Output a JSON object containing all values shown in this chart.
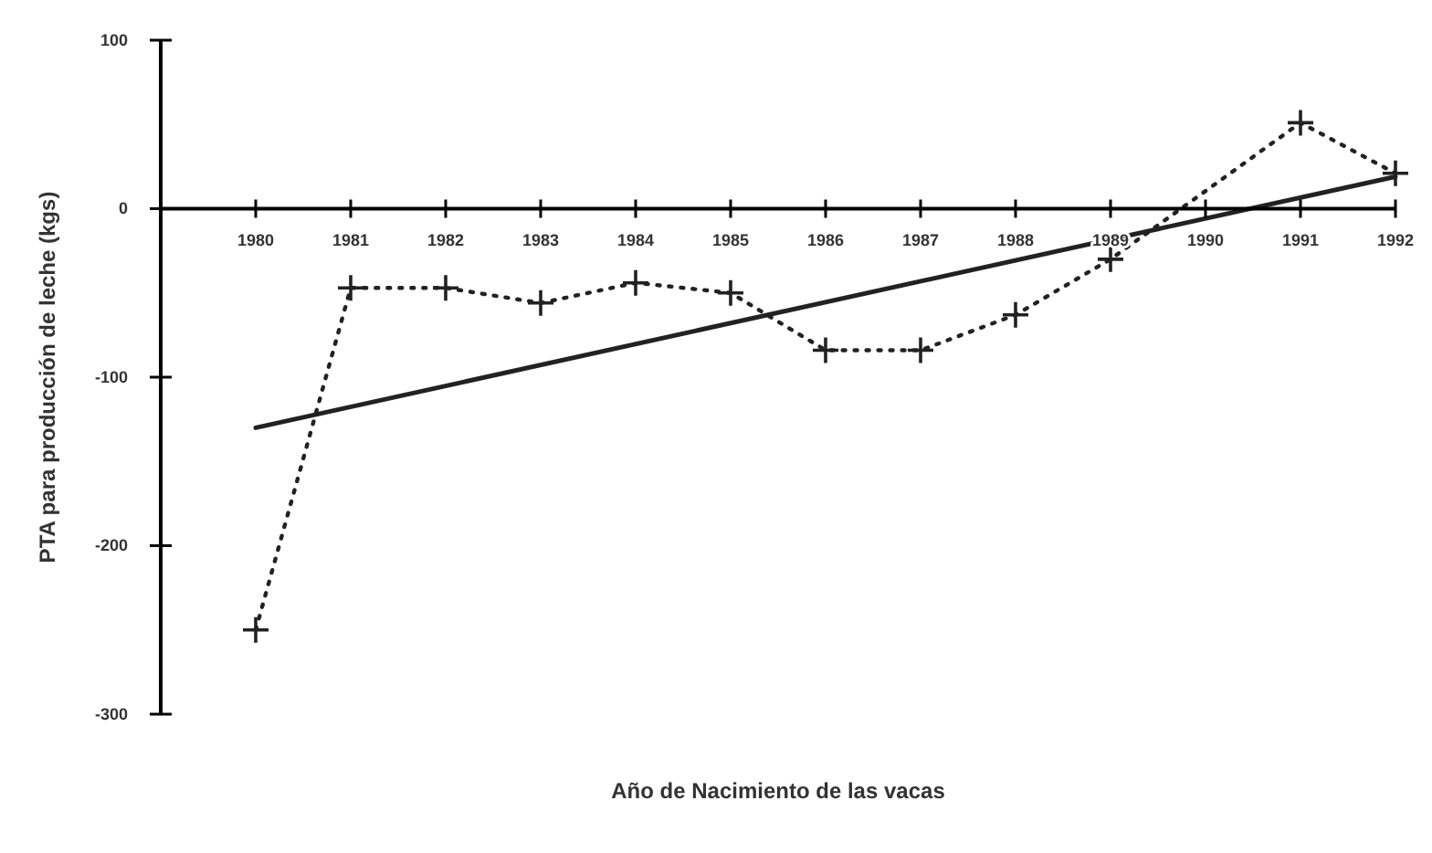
{
  "chart_data": {
    "type": "line",
    "xlabel": "Año de Nacimiento de las vacas",
    "ylabel": "PTA para producción de leche (kgs)",
    "xlim": [
      1979,
      1992
    ],
    "xticks": [
      1980,
      1981,
      1982,
      1983,
      1984,
      1985,
      1986,
      1987,
      1988,
      1989,
      1990,
      1991,
      1992
    ],
    "ylim": [
      -300,
      100
    ],
    "yticks": [
      -300,
      -200,
      -100,
      0,
      100
    ],
    "grid": false,
    "series": [
      {
        "color": "#222222",
        "marker": "cross",
        "line_style": "dotted",
        "x": [
          1980,
          1981,
          1982,
          1983,
          1984,
          1985,
          1986,
          1987,
          1988,
          1989,
          1991,
          1992
        ],
        "values": [
          -250,
          -47,
          -47,
          -56,
          -44,
          -50,
          -84,
          -84,
          -63,
          -30,
          51,
          21
        ]
      },
      {
        "color": "#222222",
        "marker": "none",
        "line_style": "solid",
        "x": [
          1980,
          1992
        ],
        "values": [
          -130,
          19
        ]
      }
    ]
  }
}
